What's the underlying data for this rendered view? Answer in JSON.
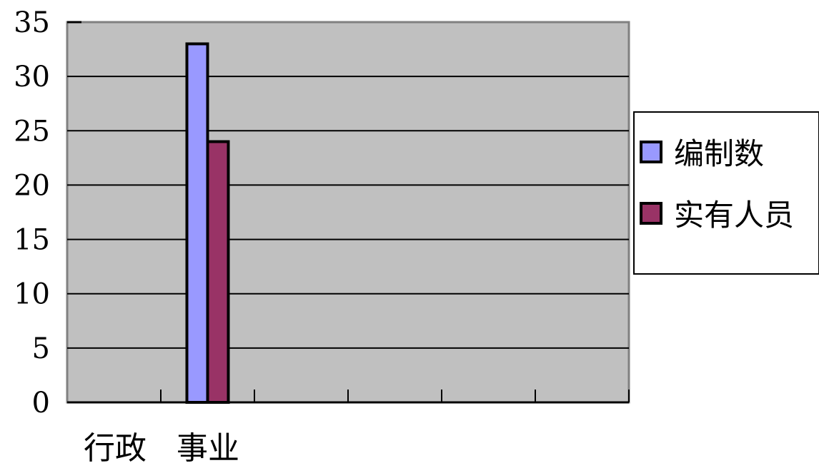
{
  "chart_data": {
    "type": "bar",
    "categories": [
      "行政",
      "事业",
      "",
      "",
      "",
      ""
    ],
    "series": [
      {
        "name": "编制数",
        "values": [
          null,
          33,
          null,
          null,
          null,
          null
        ],
        "color": "#9999FF"
      },
      {
        "name": "实有人员",
        "values": [
          null,
          24,
          null,
          null,
          null,
          null
        ],
        "color": "#993366"
      }
    ],
    "ylim": [
      0,
      35
    ],
    "yticks": [
      "0",
      "5",
      "10",
      "15",
      "20",
      "25",
      "30",
      "35"
    ],
    "grid": true,
    "plot_background": "#C0C0C0",
    "legend_position": "right",
    "title": "",
    "xlabel": "",
    "ylabel": ""
  }
}
